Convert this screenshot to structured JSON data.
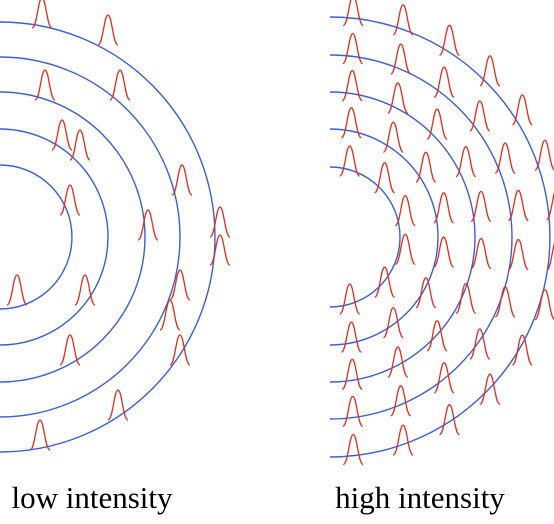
{
  "panels": [
    {
      "label": "low intensity"
    },
    {
      "label": "high intensity"
    }
  ]
}
